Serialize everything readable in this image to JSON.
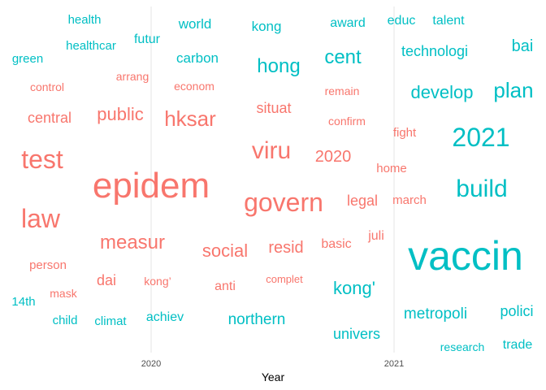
{
  "chart_data": {
    "type": "scatter",
    "subtype": "word-scatter",
    "xlabel": "Year",
    "x_ticks": [
      "2020",
      "2021"
    ],
    "grid": "vertical lines at year ticks",
    "legend": "none",
    "colors": {
      "2020": "#F8766D",
      "2021": "#00BFC4"
    },
    "words": [
      {
        "text": "epidem",
        "year": "2020",
        "size": 44
      },
      {
        "text": "test",
        "year": "2020",
        "size": 32
      },
      {
        "text": "law",
        "year": "2020",
        "size": 32
      },
      {
        "text": "govern",
        "year": "2020",
        "size": 32
      },
      {
        "text": "viru",
        "year": "2020",
        "size": 30
      },
      {
        "text": "hksar",
        "year": "2020",
        "size": 26
      },
      {
        "text": "measur",
        "year": "2020",
        "size": 24
      },
      {
        "text": "public",
        "year": "2020",
        "size": 22
      },
      {
        "text": "social",
        "year": "2020",
        "size": 22
      },
      {
        "text": "resid",
        "year": "2020",
        "size": 20
      },
      {
        "text": "2020",
        "year": "2020",
        "size": 20
      },
      {
        "text": "central",
        "year": "2020",
        "size": 18
      },
      {
        "text": "dai",
        "year": "2020",
        "size": 18
      },
      {
        "text": "situat",
        "year": "2020",
        "size": 18
      },
      {
        "text": "legal",
        "year": "2020",
        "size": 18
      },
      {
        "text": "anti",
        "year": "2020",
        "size": 16
      },
      {
        "text": "basic",
        "year": "2020",
        "size": 16
      },
      {
        "text": "juli",
        "year": "2020",
        "size": 16
      },
      {
        "text": "person",
        "year": "2020",
        "size": 15
      },
      {
        "text": "fight",
        "year": "2020",
        "size": 15
      },
      {
        "text": "home",
        "year": "2020",
        "size": 15
      },
      {
        "text": "march",
        "year": "2020",
        "size": 15
      },
      {
        "text": "control",
        "year": "2020",
        "size": 14
      },
      {
        "text": "arrang",
        "year": "2020",
        "size": 14
      },
      {
        "text": "econom",
        "year": "2020",
        "size": 14
      },
      {
        "text": "remain",
        "year": "2020",
        "size": 14
      },
      {
        "text": "confirm",
        "year": "2020",
        "size": 14
      },
      {
        "text": "mask",
        "year": "2020",
        "size": 14
      },
      {
        "text": "kong’",
        "year": "2020",
        "size": 14
      },
      {
        "text": "complet",
        "year": "2020",
        "size": 13
      },
      {
        "text": "vaccin",
        "year": "2021",
        "size": 50
      },
      {
        "text": "2021",
        "year": "2021",
        "size": 32
      },
      {
        "text": "build",
        "year": "2021",
        "size": 30
      },
      {
        "text": "plan",
        "year": "2021",
        "size": 26
      },
      {
        "text": "hong",
        "year": "2021",
        "size": 24
      },
      {
        "text": "cent",
        "year": "2021",
        "size": 24
      },
      {
        "text": "develop",
        "year": "2021",
        "size": 22
      },
      {
        "text": "kong'",
        "year": "2021",
        "size": 22
      },
      {
        "text": "bai",
        "year": "2021",
        "size": 20
      },
      {
        "text": "metropoli",
        "year": "2021",
        "size": 19
      },
      {
        "text": "northern",
        "year": "2021",
        "size": 19
      },
      {
        "text": "technologi",
        "year": "2021",
        "size": 18
      },
      {
        "text": "polici",
        "year": "2021",
        "size": 18
      },
      {
        "text": "univers",
        "year": "2021",
        "size": 18
      },
      {
        "text": "carbon",
        "year": "2021",
        "size": 17
      },
      {
        "text": "world",
        "year": "2021",
        "size": 17
      },
      {
        "text": "kong",
        "year": "2021",
        "size": 17
      },
      {
        "text": "award",
        "year": "2021",
        "size": 16
      },
      {
        "text": "educ",
        "year": "2021",
        "size": 16
      },
      {
        "text": "talent",
        "year": "2021",
        "size": 16
      },
      {
        "text": "futur",
        "year": "2021",
        "size": 16
      },
      {
        "text": "achiev",
        "year": "2021",
        "size": 16
      },
      {
        "text": "trade",
        "year": "2021",
        "size": 16
      },
      {
        "text": "health",
        "year": "2021",
        "size": 15
      },
      {
        "text": "healthcar",
        "year": "2021",
        "size": 15
      },
      {
        "text": "green",
        "year": "2021",
        "size": 15
      },
      {
        "text": "14th",
        "year": "2021",
        "size": 15
      },
      {
        "text": "child",
        "year": "2021",
        "size": 15
      },
      {
        "text": "climat",
        "year": "2021",
        "size": 15
      },
      {
        "text": "research",
        "year": "2021",
        "size": 14
      }
    ]
  }
}
